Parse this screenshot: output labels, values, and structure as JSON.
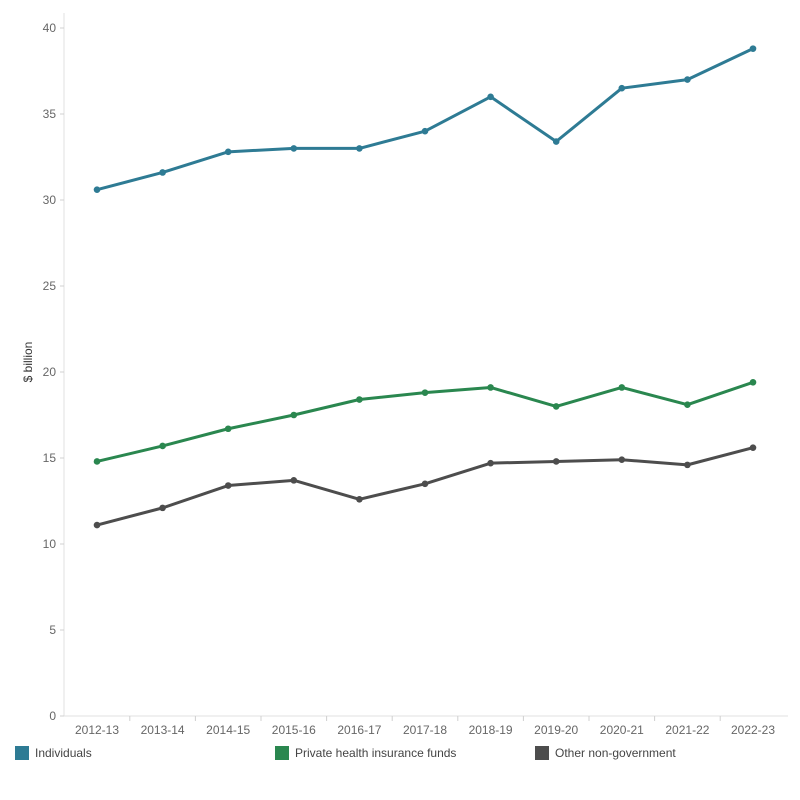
{
  "chart_data": {
    "type": "line",
    "ylabel": "$ billion",
    "ylim": [
      0,
      40
    ],
    "yticks": [
      0,
      5,
      10,
      15,
      20,
      25,
      30,
      35,
      40
    ],
    "categories": [
      "2012-13",
      "2013-14",
      "2014-15",
      "2015-16",
      "2016-17",
      "2017-18",
      "2018-19",
      "2019-20",
      "2020-21",
      "2021-22",
      "2022-23"
    ],
    "series": [
      {
        "name": "Individuals",
        "color": "#2e7b94",
        "values": [
          30.6,
          31.6,
          32.8,
          33.0,
          33.0,
          34.0,
          36.0,
          33.4,
          36.5,
          37.0,
          38.8
        ]
      },
      {
        "name": "Private health insurance funds",
        "color": "#2a874f",
        "values": [
          14.8,
          15.7,
          16.7,
          17.5,
          18.4,
          18.8,
          19.1,
          18.0,
          19.1,
          18.1,
          19.4
        ]
      },
      {
        "name": "Other non-government",
        "color": "#4d4d4d",
        "values": [
          11.1,
          12.1,
          13.4,
          13.7,
          12.6,
          13.5,
          14.7,
          14.8,
          14.9,
          14.6,
          15.6
        ]
      }
    ],
    "grid": false,
    "legend_position": "bottom"
  }
}
